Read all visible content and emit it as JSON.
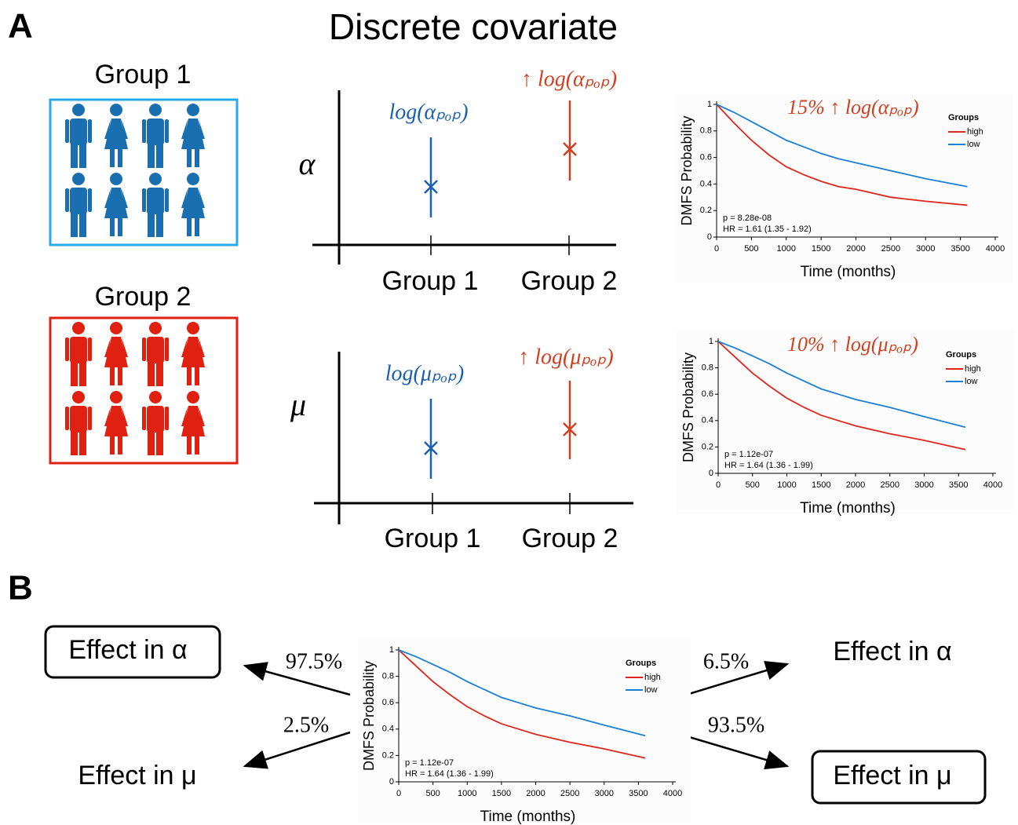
{
  "panel_labels": [
    "A",
    "B"
  ],
  "title": "Discrete covariate",
  "groups": [
    {
      "label": "Group 1"
    },
    {
      "label": "Group 2"
    }
  ],
  "dot_plots": [
    {
      "param": "α",
      "x_labels": [
        "Group 1",
        "Group 2"
      ],
      "annotations": [
        "log(αₚₒₚ)",
        "↑ log(αₚₒₚ)"
      ]
    },
    {
      "param": "μ",
      "x_labels": [
        "Group 1",
        "Group 2"
      ],
      "annotations": [
        "log(μₚₒₚ)",
        "↑ log(μₚₒₚ)"
      ]
    }
  ],
  "effects": {
    "left": [
      {
        "label": "Effect in α",
        "percent": "97.5%"
      },
      {
        "label": "Effect in μ",
        "percent": "2.5%"
      }
    ],
    "right": [
      {
        "label": "Effect in α",
        "percent": "6.5%"
      },
      {
        "label": "Effect in μ",
        "percent": "93.5%"
      }
    ]
  },
  "chart_data": [
    {
      "type": "line",
      "annotation": "15% ↑ log(αₚₒₚ)",
      "ylabel": "DMFS Probability",
      "xlabel": "Time (months)",
      "x": [
        0,
        250,
        500,
        750,
        1000,
        1250,
        1500,
        1750,
        2000,
        2500,
        3000,
        3600
      ],
      "series": [
        {
          "name": "high",
          "color": "#e0261c",
          "values": [
            1,
            0.86,
            0.73,
            0.62,
            0.53,
            0.47,
            0.42,
            0.38,
            0.36,
            0.3,
            0.27,
            0.24
          ]
        },
        {
          "name": "low",
          "color": "#1a7fd6",
          "values": [
            1,
            0.94,
            0.87,
            0.8,
            0.73,
            0.68,
            0.63,
            0.59,
            0.56,
            0.5,
            0.44,
            0.38
          ]
        }
      ],
      "xlim": [
        0,
        4000
      ],
      "ylim": [
        0,
        1
      ],
      "xticks": [
        0,
        500,
        1000,
        1500,
        2000,
        2500,
        3000,
        3500,
        4000
      ],
      "yticks": [
        0,
        0.2,
        0.4,
        0.6,
        0.8,
        1
      ],
      "legend_title": "Groups",
      "stats": [
        "p = 8.28e-08",
        "HR = 1.61 (1.35 - 1.92)"
      ]
    },
    {
      "type": "line",
      "annotation": "10% ↑ log(μₚₒₚ)",
      "ylabel": "DMFS Probability",
      "xlabel": "Time (months)",
      "x": [
        0,
        250,
        500,
        750,
        1000,
        1250,
        1500,
        1750,
        2000,
        2500,
        3000,
        3600
      ],
      "series": [
        {
          "name": "high",
          "color": "#e0261c",
          "values": [
            1,
            0.88,
            0.76,
            0.66,
            0.57,
            0.5,
            0.44,
            0.4,
            0.36,
            0.3,
            0.25,
            0.18
          ]
        },
        {
          "name": "low",
          "color": "#1a7fd6",
          "values": [
            1,
            0.95,
            0.89,
            0.83,
            0.76,
            0.7,
            0.64,
            0.6,
            0.56,
            0.5,
            0.43,
            0.35
          ]
        }
      ],
      "xlim": [
        0,
        4000
      ],
      "ylim": [
        0,
        1
      ],
      "xticks": [
        0,
        500,
        1000,
        1500,
        2000,
        2500,
        3000,
        3500,
        4000
      ],
      "yticks": [
        0,
        0.2,
        0.4,
        0.6,
        0.8,
        1
      ],
      "legend_title": "Groups",
      "stats": [
        "p = 1.12e-07",
        "HR = 1.64 (1.36 - 1.99)"
      ]
    },
    {
      "type": "line",
      "ylabel": "DMFS Probability",
      "xlabel": "Time (months)",
      "x": [
        0,
        250,
        500,
        750,
        1000,
        1250,
        1500,
        1750,
        2000,
        2500,
        3000,
        3600
      ],
      "series": [
        {
          "name": "high",
          "color": "#e0261c",
          "values": [
            1,
            0.88,
            0.76,
            0.66,
            0.57,
            0.5,
            0.44,
            0.4,
            0.36,
            0.3,
            0.25,
            0.18
          ]
        },
        {
          "name": "low",
          "color": "#1a7fd6",
          "values": [
            1,
            0.95,
            0.89,
            0.83,
            0.76,
            0.7,
            0.64,
            0.6,
            0.56,
            0.5,
            0.43,
            0.35
          ]
        }
      ],
      "xlim": [
        0,
        4000
      ],
      "ylim": [
        0,
        1
      ],
      "xticks": [
        0,
        500,
        1000,
        1500,
        2000,
        2500,
        3000,
        3500,
        4000
      ],
      "yticks": [
        0,
        0.2,
        0.4,
        0.6,
        0.8,
        1
      ],
      "legend_title": "Groups",
      "stats": [
        "p = 1.12e-07",
        "HR = 1.64 (1.36 - 1.99)"
      ]
    }
  ]
}
